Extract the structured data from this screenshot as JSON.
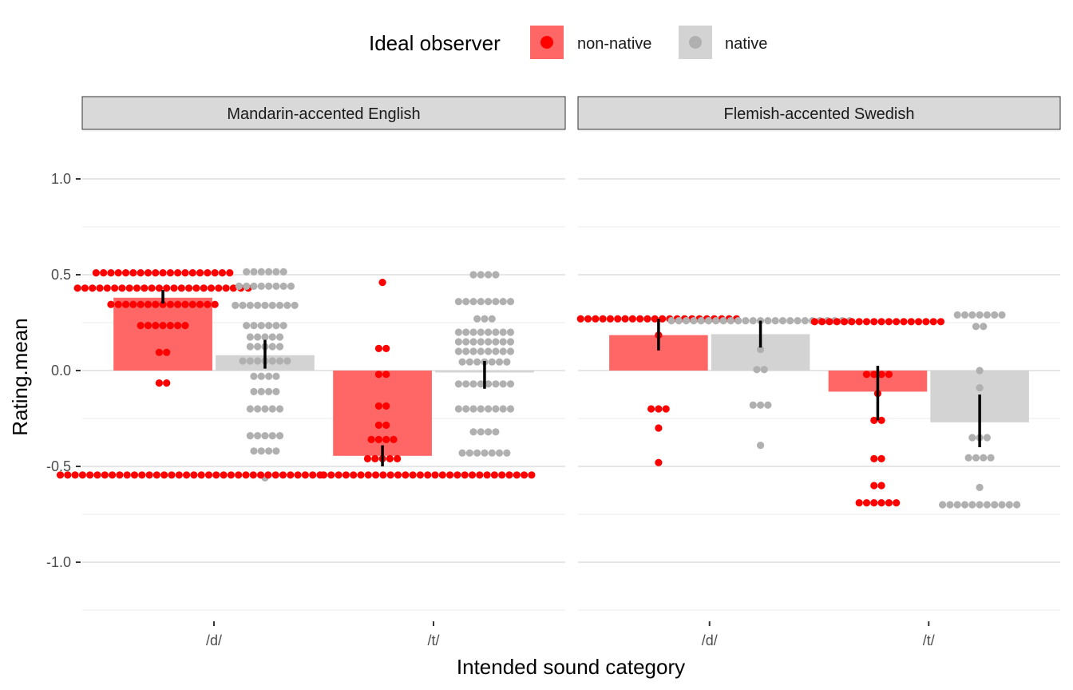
{
  "chart_data": {
    "type": "bar",
    "xlabel": "Intended sound category",
    "ylabel": "Rating.mean",
    "ylim": [
      -1.25,
      1.25
    ],
    "yticks": [
      -1.0,
      -0.5,
      0.0,
      0.5,
      1.0
    ],
    "ytick_labels": [
      "-1.0",
      "-0.5",
      "0.0",
      "0.5",
      "1.0"
    ],
    "categories": [
      "/d/",
      "/t/"
    ],
    "grid": true,
    "legend": {
      "position": "top",
      "title": "Ideal observer",
      "entries": [
        {
          "label": "non-native",
          "color": "#ff0000",
          "bar_color": "#ff6666"
        },
        {
          "label": "native",
          "color": "#b0b0b0",
          "bar_color": "#d3d3d3"
        }
      ]
    },
    "panels": [
      {
        "title": "Mandarin-accented English",
        "groups": [
          {
            "category": "/d/",
            "series": "non-native",
            "mean": 0.38,
            "ci": [
              0.35,
              0.42
            ],
            "dots": [
              {
                "y": 0.51,
                "n": 19
              },
              {
                "y": 0.43,
                "n": 24
              },
              {
                "y": 0.345,
                "n": 15
              },
              {
                "y": 0.235,
                "n": 7
              },
              {
                "y": 0.095,
                "n": 2
              },
              {
                "y": -0.065,
                "n": 2
              }
            ]
          },
          {
            "category": "/d/",
            "series": "native",
            "mean": 0.08,
            "ci": [
              0.01,
              0.16
            ],
            "dots": [
              {
                "y": 0.515,
                "n": 6
              },
              {
                "y": 0.44,
                "n": 8
              },
              {
                "y": 0.34,
                "n": 9
              },
              {
                "y": 0.235,
                "n": 6
              },
              {
                "y": 0.175,
                "n": 5
              },
              {
                "y": 0.125,
                "n": 5
              },
              {
                "y": 0.05,
                "n": 7
              },
              {
                "y": -0.03,
                "n": 4
              },
              {
                "y": -0.11,
                "n": 4
              },
              {
                "y": -0.2,
                "n": 5
              },
              {
                "y": -0.34,
                "n": 5
              },
              {
                "y": -0.42,
                "n": 4
              },
              {
                "y": -0.56,
                "n": 1
              }
            ]
          },
          {
            "category": "/t/",
            "series": "non-native",
            "mean": -0.445,
            "ci": [
              -0.5,
              -0.39
            ],
            "dots": [
              {
                "y": 0.46,
                "n": 1
              },
              {
                "y": 0.115,
                "n": 2
              },
              {
                "y": -0.02,
                "n": 2
              },
              {
                "y": -0.185,
                "n": 2
              },
              {
                "y": -0.285,
                "n": 2
              },
              {
                "y": -0.36,
                "n": 4
              },
              {
                "y": -0.46,
                "n": 5
              }
            ]
          },
          {
            "category": "/t/",
            "series": "native",
            "mean": -0.01,
            "ci": [
              -0.095,
              0.05
            ],
            "dots": [
              {
                "y": 0.5,
                "n": 4
              },
              {
                "y": 0.36,
                "n": 8
              },
              {
                "y": 0.27,
                "n": 3
              },
              {
                "y": 0.2,
                "n": 8
              },
              {
                "y": 0.15,
                "n": 8
              },
              {
                "y": 0.1,
                "n": 8
              },
              {
                "y": 0.045,
                "n": 7
              },
              {
                "y": -0.07,
                "n": 8
              },
              {
                "y": -0.2,
                "n": 8
              },
              {
                "y": -0.32,
                "n": 4
              },
              {
                "y": -0.43,
                "n": 7
              }
            ]
          }
        ],
        "floor_rows": [
          {
            "y": -0.545,
            "from": 0.3,
            "to": 1.5,
            "color": "#ff0000"
          },
          {
            "y": -0.545,
            "from": 1.5,
            "to": 2.45,
            "color": "#ff0000"
          }
        ]
      },
      {
        "title": "Flemish-accented Swedish",
        "groups": [
          {
            "category": "/d/",
            "series": "non-native",
            "mean": 0.185,
            "ci": [
              0.105,
              0.27
            ],
            "dots": [
              {
                "y": 0.27,
                "n": 22
              },
              {
                "y": 0.185,
                "n": 1
              },
              {
                "y": -0.2,
                "n": 3
              },
              {
                "y": -0.3,
                "n": 1
              },
              {
                "y": -0.48,
                "n": 1
              }
            ]
          },
          {
            "category": "/d/",
            "series": "native",
            "mean": 0.19,
            "ci": [
              0.12,
              0.26
            ],
            "dots": [
              {
                "y": 0.26,
                "n": 25
              },
              {
                "y": 0.11,
                "n": 1
              },
              {
                "y": 0.005,
                "n": 2
              },
              {
                "y": -0.18,
                "n": 3
              },
              {
                "y": -0.39,
                "n": 1
              }
            ]
          },
          {
            "category": "/t/",
            "series": "non-native",
            "mean": -0.11,
            "ci": [
              -0.26,
              0.025
            ],
            "dots": [
              {
                "y": 0.255,
                "n": 18
              },
              {
                "y": -0.02,
                "n": 4
              },
              {
                "y": -0.12,
                "n": 1
              },
              {
                "y": -0.26,
                "n": 2
              },
              {
                "y": -0.46,
                "n": 2
              },
              {
                "y": -0.6,
                "n": 2
              },
              {
                "y": -0.69,
                "n": 6
              }
            ]
          },
          {
            "category": "/t/",
            "series": "native",
            "mean": -0.27,
            "ci": [
              -0.4,
              -0.125
            ],
            "dots": [
              {
                "y": 0.29,
                "n": 7
              },
              {
                "y": 0.23,
                "n": 2
              },
              {
                "y": 0.0,
                "n": 1
              },
              {
                "y": -0.09,
                "n": 1
              },
              {
                "y": -0.35,
                "n": 3
              },
              {
                "y": -0.455,
                "n": 4
              },
              {
                "y": -0.61,
                "n": 1
              },
              {
                "y": -0.7,
                "n": 11
              }
            ]
          }
        ],
        "floor_rows": []
      }
    ]
  }
}
